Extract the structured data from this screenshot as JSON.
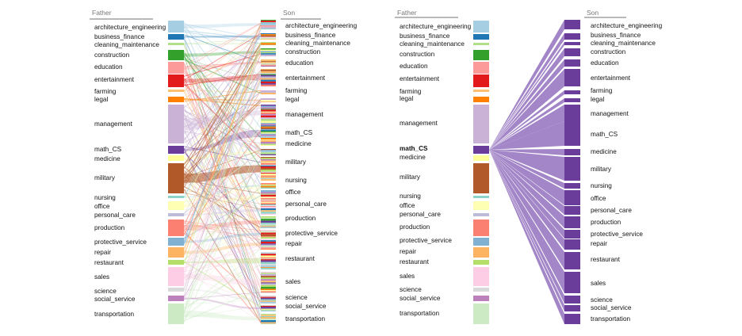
{
  "headers": {
    "father": "Father",
    "son": "Son"
  },
  "highlighted": "math_CS",
  "colors": {
    "architecture_engineering": "#a6cee3",
    "business_finance": "#1f78b4",
    "cleaning_maintenance": "#b2df8a",
    "construction": "#33a02c",
    "education": "#fb9a99",
    "entertainment": "#e31a1c",
    "farming": "#fdbf6f",
    "legal": "#ff7f00",
    "management": "#cab2d6",
    "math_CS": "#6a3d9a",
    "medicine": "#ffff99",
    "military": "#b15928",
    "nursing": "#8dd3c7",
    "office": "#ffffb3",
    "personal_care": "#bebada",
    "production": "#fb8072",
    "protective_service": "#80b1d3",
    "repair": "#fdb462",
    "restaurant": "#b3de69",
    "sales": "#fccde5",
    "science": "#d9d9d9",
    "social_service": "#bc80bd",
    "transportation": "#ccebc5",
    "highlight_flow": "#9e7fc4"
  },
  "occupations": [
    "architecture_engineering",
    "business_finance",
    "cleaning_maintenance",
    "construction",
    "education",
    "entertainment",
    "farming",
    "legal",
    "management",
    "math_CS",
    "medicine",
    "military",
    "nursing",
    "office",
    "personal_care",
    "production",
    "protective_service",
    "repair",
    "restaurant",
    "sales",
    "science",
    "social_service",
    "transportation"
  ]
}
